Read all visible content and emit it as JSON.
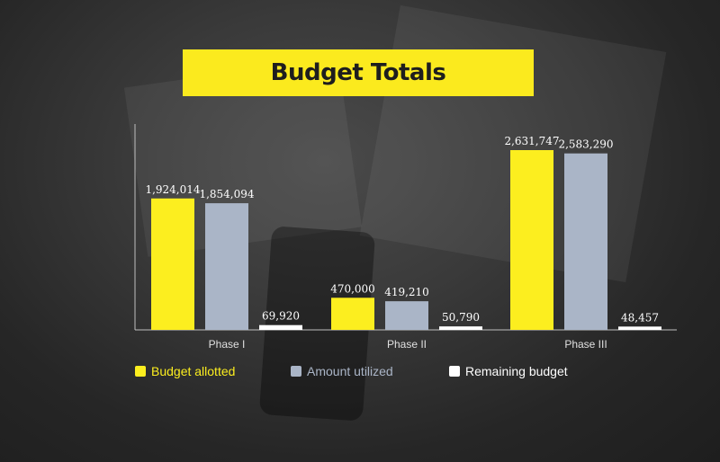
{
  "title": "Budget Totals",
  "colors": {
    "budget_allotted": "#fcee1f",
    "amount_utilized": "#aab5c7",
    "remaining_budget": "#ffffff",
    "title_bg": "#fbea1e",
    "axis": "#bfbfbf",
    "label_text": "#ffffff",
    "category_text": "#e0e0e0"
  },
  "chart_data": {
    "type": "bar",
    "title": "Budget Totals",
    "categories": [
      "Phase I",
      "Phase II",
      "Phase III"
    ],
    "series": [
      {
        "name": "Budget allotted",
        "values": [
          1924014,
          470000,
          2631747
        ],
        "labels": [
          "1,924,014",
          "470,000",
          "2,631,747"
        ]
      },
      {
        "name": "Amount utilized",
        "values": [
          1854094,
          419210,
          2583290
        ],
        "labels": [
          "1,854,094",
          "419,210",
          "2,583,290"
        ]
      },
      {
        "name": "Remaining budget",
        "values": [
          69920,
          50790,
          48457
        ],
        "labels": [
          "69,920",
          "50,790",
          "48,457"
        ]
      }
    ],
    "ylim": [
      0,
      2631747
    ],
    "grid": false,
    "legend": "bottom"
  },
  "legend": [
    {
      "label": "Budget allotted"
    },
    {
      "label": "Amount utilized"
    },
    {
      "label": "Remaining budget"
    }
  ]
}
